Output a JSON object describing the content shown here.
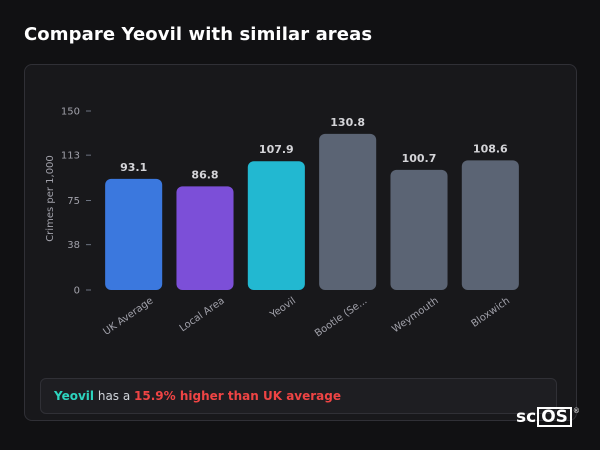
{
  "title": "Compare Yeovil with similar areas",
  "chart_data": {
    "type": "bar",
    "categories": [
      "UK Average",
      "Local Area",
      "Yeovil",
      "Bootle (Se...",
      "Weymouth",
      "Bloxwich"
    ],
    "values": [
      93.1,
      86.8,
      107.9,
      130.8,
      100.7,
      108.6
    ],
    "value_labels": [
      "93.1",
      "86.8",
      "107.9",
      "130.8",
      "100.7",
      "108.6"
    ],
    "colors": [
      "#3b78de",
      "#7c4fd8",
      "#22b8d1",
      "#5b6474",
      "#5b6474",
      "#5b6474"
    ],
    "ylabel": "Crimes per 1,000",
    "xlabel": "",
    "ylim": [
      0,
      150
    ],
    "y_ticks": [
      150,
      113,
      75,
      38,
      0
    ],
    "grid": false,
    "x_labels_rotated": true
  },
  "summary": {
    "area": "Yeovil",
    "middle": " has a ",
    "difference": "15.9% higher than UK average"
  },
  "logo": {
    "prefix": "sc",
    "boxed": "OS",
    "mark": "®"
  }
}
